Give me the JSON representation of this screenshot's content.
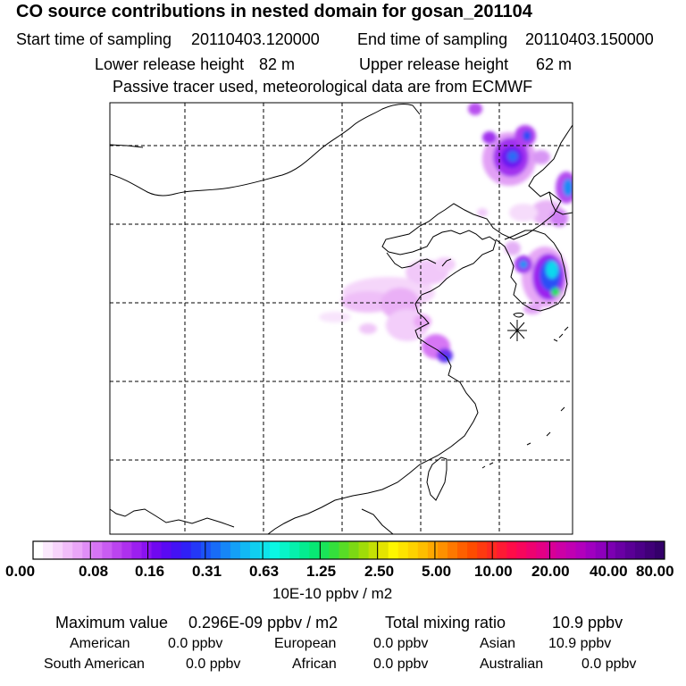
{
  "header": {
    "title": "CO  source contributions in nested domain for gosan_201104",
    "start_label": "Start time of sampling",
    "start_value": "20110403.120000",
    "end_label": "End time of sampling",
    "end_value": "20110403.150000",
    "lower_label": "Lower release height",
    "lower_value": "82 m",
    "upper_label": "Upper release height",
    "upper_value": "62 m",
    "note": "Passive tracer used, meteorological data are from ECMWF"
  },
  "colorbar": {
    "ticks": [
      "0.00",
      "0.08",
      "0.16",
      "0.31",
      "0.63",
      "1.25",
      "2.50",
      "5.00",
      "10.00",
      "20.00",
      "40.00",
      "80.00"
    ],
    "unit": "10E-10 ppbv / m2",
    "colors": [
      "#ffffff",
      "#fbe9fd",
      "#f7d4fb",
      "#f1bdf9",
      "#eaa6f7",
      "#e08ef6",
      "#d674f4",
      "#c95cf2",
      "#bb44ef",
      "#ae30ee",
      "#9c1ff0",
      "#8a12f0",
      "#7008f0",
      "#5a0af3",
      "#4412f5",
      "#3020f6",
      "#2438f6",
      "#1c52f6",
      "#186cf6",
      "#1686f6",
      "#14a0f6",
      "#12b8f4",
      "#10cef0",
      "#0ee4ea",
      "#0af8e4",
      "#08f4c8",
      "#06f0ac",
      "#04ec90",
      "#08e874",
      "#1ae458",
      "#34e03c",
      "#58dc26",
      "#7cd814",
      "#a0dc08",
      "#c4e004",
      "#e4e400",
      "#fff600",
      "#ffe400",
      "#ffd200",
      "#ffbe00",
      "#ffa800",
      "#ff9000",
      "#ff7800",
      "#ff6000",
      "#ff4c00",
      "#ff3a10",
      "#ff2a20",
      "#ff1a34",
      "#ff0c48",
      "#f8065c",
      "#ee0270",
      "#e40084",
      "#d80096",
      "#cc00a6",
      "#c000b2",
      "#b200bc",
      "#a000c0",
      "#8e00bc",
      "#7c00b2",
      "#6a00a4",
      "#5a0096",
      "#4c0088",
      "#400078",
      "#34006a"
    ]
  },
  "footer": {
    "max_label": "Maximum value",
    "max_value": "0.296E-09 ppbv / m2",
    "total_label": "Total mixing ratio",
    "total_value": "10.9 ppbv",
    "american_label": "American",
    "american_value": "0.0 ppbv",
    "european_label": "European",
    "european_value": "0.0 ppbv",
    "asian_label": "Asian",
    "asian_value": "10.9 ppbv",
    "south_american_label": "South American",
    "south_american_value": "0.0 ppbv",
    "african_label": "African",
    "african_value": "0.0 ppbv",
    "australian_label": "Australian",
    "australian_value": "0.0 ppbv"
  }
}
